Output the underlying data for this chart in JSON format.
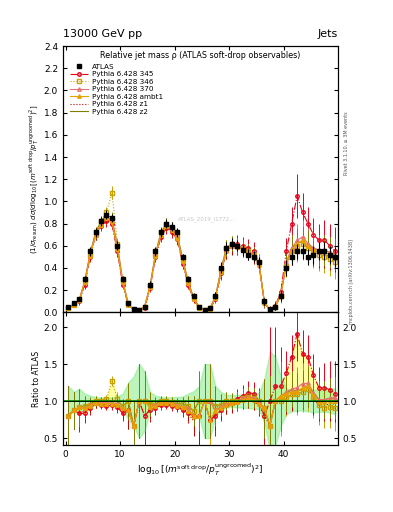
{
  "title_top": "13000 GeV pp",
  "title_right": "Jets",
  "plot_title": "Relative jet mass ρ (ATLAS soft-drop observables)",
  "ylabel_main": "(1/σ_{resum}) dσ/d log_{10}[(m^{soft drop}/p_T^{ungroomed})^2]",
  "ylabel_ratio": "Ratio to ATLAS",
  "watermark": "ATLAS_2019_I1772...",
  "rivet_label": "Rivet 3.1.10, ≥ 3M events",
  "arxiv_label": "mcplots.cern.ch [arXiv:1306.3438]",
  "xlim": [
    -0.5,
    50
  ],
  "ylim_main": [
    0,
    2.4
  ],
  "ylim_ratio": [
    0.4,
    2.2
  ],
  "yticks_main": [
    0.0,
    0.2,
    0.4,
    0.6,
    0.8,
    1.0,
    1.2,
    1.4,
    1.6,
    1.8,
    2.0,
    2.2,
    2.4
  ],
  "yticks_ratio": [
    0.5,
    1.0,
    1.5,
    2.0
  ],
  "x_ticks": [
    0,
    10,
    20,
    30,
    40
  ],
  "x_data": [
    0.5,
    1.5,
    2.5,
    3.5,
    4.5,
    5.5,
    6.5,
    7.5,
    8.5,
    9.5,
    10.5,
    11.5,
    12.5,
    13.5,
    14.5,
    15.5,
    16.5,
    17.5,
    18.5,
    19.5,
    20.5,
    21.5,
    22.5,
    23.5,
    24.5,
    25.5,
    26.5,
    27.5,
    28.5,
    29.5,
    30.5,
    31.5,
    32.5,
    33.5,
    34.5,
    35.5,
    36.5,
    37.5,
    38.5,
    39.5,
    40.5,
    41.5,
    42.5,
    43.5,
    44.5,
    45.5,
    46.5,
    47.5,
    48.5,
    49.5
  ],
  "atlas_y": [
    0.05,
    0.08,
    0.12,
    0.3,
    0.55,
    0.72,
    0.82,
    0.88,
    0.85,
    0.6,
    0.3,
    0.08,
    0.03,
    0.02,
    0.05,
    0.25,
    0.55,
    0.72,
    0.8,
    0.77,
    0.72,
    0.5,
    0.3,
    0.15,
    0.05,
    0.02,
    0.04,
    0.15,
    0.4,
    0.58,
    0.62,
    0.6,
    0.56,
    0.52,
    0.5,
    0.45,
    0.1,
    0.03,
    0.05,
    0.15,
    0.4,
    0.5,
    0.55,
    0.55,
    0.5,
    0.52,
    0.55,
    0.55,
    0.52,
    0.5
  ],
  "atlas_yerr": [
    0.01,
    0.01,
    0.02,
    0.03,
    0.04,
    0.04,
    0.04,
    0.04,
    0.04,
    0.04,
    0.03,
    0.02,
    0.01,
    0.01,
    0.02,
    0.03,
    0.04,
    0.04,
    0.04,
    0.04,
    0.04,
    0.03,
    0.03,
    0.02,
    0.01,
    0.01,
    0.02,
    0.03,
    0.05,
    0.05,
    0.05,
    0.05,
    0.05,
    0.05,
    0.05,
    0.05,
    0.03,
    0.02,
    0.03,
    0.05,
    0.07,
    0.07,
    0.07,
    0.07,
    0.07,
    0.08,
    0.08,
    0.08,
    0.08,
    0.09
  ],
  "series": [
    {
      "label": "Pythia 6.428 345",
      "color": "#e8001a",
      "linestyle": "-.",
      "marker": "o",
      "markerfacecolor": "none",
      "y": [
        0.04,
        0.07,
        0.1,
        0.25,
        0.5,
        0.7,
        0.78,
        0.82,
        0.8,
        0.55,
        0.25,
        0.07,
        0.02,
        0.02,
        0.04,
        0.22,
        0.5,
        0.68,
        0.76,
        0.72,
        0.66,
        0.44,
        0.25,
        0.12,
        0.04,
        0.02,
        0.03,
        0.12,
        0.35,
        0.55,
        0.6,
        0.62,
        0.6,
        0.58,
        0.55,
        0.45,
        0.08,
        0.03,
        0.06,
        0.18,
        0.55,
        0.8,
        1.05,
        0.9,
        0.8,
        0.7,
        0.65,
        0.65,
        0.6,
        0.55
      ],
      "yerr": [
        0.02,
        0.02,
        0.03,
        0.04,
        0.05,
        0.05,
        0.05,
        0.05,
        0.05,
        0.05,
        0.03,
        0.02,
        0.01,
        0.01,
        0.02,
        0.04,
        0.05,
        0.05,
        0.05,
        0.05,
        0.05,
        0.05,
        0.04,
        0.03,
        0.02,
        0.01,
        0.02,
        0.04,
        0.06,
        0.07,
        0.07,
        0.08,
        0.08,
        0.08,
        0.08,
        0.08,
        0.04,
        0.03,
        0.04,
        0.08,
        0.12,
        0.15,
        0.2,
        0.18,
        0.15,
        0.15,
        0.15,
        0.18,
        0.2,
        0.22
      ]
    },
    {
      "label": "Pythia 6.428 346",
      "color": "#c8a000",
      "linestyle": ":",
      "marker": "s",
      "markerfacecolor": "none",
      "y": [
        0.04,
        0.07,
        0.11,
        0.28,
        0.52,
        0.72,
        0.82,
        0.9,
        1.08,
        0.62,
        0.28,
        0.08,
        0.02,
        0.02,
        0.05,
        0.24,
        0.52,
        0.72,
        0.8,
        0.76,
        0.7,
        0.48,
        0.28,
        0.13,
        0.05,
        0.02,
        0.04,
        0.14,
        0.38,
        0.58,
        0.62,
        0.6,
        0.58,
        0.55,
        0.52,
        0.45,
        0.09,
        0.02,
        0.05,
        0.15,
        0.42,
        0.55,
        0.6,
        0.62,
        0.58,
        0.55,
        0.52,
        0.5,
        0.48,
        0.45
      ],
      "yerr": [
        0.02,
        0.02,
        0.03,
        0.04,
        0.05,
        0.05,
        0.05,
        0.05,
        0.06,
        0.05,
        0.03,
        0.02,
        0.01,
        0.01,
        0.02,
        0.04,
        0.05,
        0.05,
        0.05,
        0.05,
        0.05,
        0.05,
        0.04,
        0.03,
        0.02,
        0.01,
        0.02,
        0.04,
        0.06,
        0.07,
        0.07,
        0.07,
        0.07,
        0.07,
        0.07,
        0.07,
        0.04,
        0.02,
        0.03,
        0.07,
        0.1,
        0.12,
        0.15,
        0.15,
        0.15,
        0.15,
        0.15,
        0.15,
        0.15,
        0.15
      ]
    },
    {
      "label": "Pythia 6.428 370",
      "color": "#e87070",
      "linestyle": "-",
      "marker": "^",
      "markerfacecolor": "none",
      "y": [
        0.04,
        0.07,
        0.11,
        0.27,
        0.52,
        0.7,
        0.8,
        0.86,
        0.83,
        0.58,
        0.27,
        0.07,
        0.02,
        0.02,
        0.05,
        0.23,
        0.52,
        0.7,
        0.78,
        0.75,
        0.68,
        0.46,
        0.27,
        0.12,
        0.04,
        0.02,
        0.04,
        0.13,
        0.37,
        0.56,
        0.6,
        0.6,
        0.58,
        0.55,
        0.52,
        0.44,
        0.09,
        0.02,
        0.05,
        0.16,
        0.45,
        0.58,
        0.65,
        0.68,
        0.62,
        0.58,
        0.56,
        0.56,
        0.54,
        0.52
      ],
      "yerr": [
        0.02,
        0.02,
        0.03,
        0.04,
        0.05,
        0.05,
        0.05,
        0.05,
        0.05,
        0.05,
        0.03,
        0.02,
        0.01,
        0.01,
        0.02,
        0.04,
        0.05,
        0.05,
        0.05,
        0.05,
        0.05,
        0.05,
        0.04,
        0.03,
        0.02,
        0.01,
        0.02,
        0.04,
        0.06,
        0.07,
        0.07,
        0.07,
        0.07,
        0.07,
        0.07,
        0.07,
        0.04,
        0.02,
        0.03,
        0.07,
        0.1,
        0.12,
        0.15,
        0.15,
        0.14,
        0.14,
        0.14,
        0.14,
        0.14,
        0.14
      ]
    },
    {
      "label": "Pythia 6.428 ambt1",
      "color": "#e8a000",
      "linestyle": "-",
      "marker": "^",
      "markerfacecolor": "#e8a000",
      "y": [
        0.04,
        0.07,
        0.11,
        0.27,
        0.51,
        0.7,
        0.79,
        0.85,
        0.82,
        0.57,
        0.27,
        0.07,
        0.02,
        0.02,
        0.05,
        0.23,
        0.51,
        0.7,
        0.78,
        0.74,
        0.67,
        0.46,
        0.26,
        0.12,
        0.04,
        0.02,
        0.03,
        0.13,
        0.36,
        0.55,
        0.6,
        0.59,
        0.57,
        0.54,
        0.51,
        0.43,
        0.09,
        0.02,
        0.05,
        0.16,
        0.44,
        0.56,
        0.62,
        0.65,
        0.6,
        0.56,
        0.54,
        0.54,
        0.52,
        0.5
      ],
      "yerr": [
        0.02,
        0.02,
        0.03,
        0.04,
        0.05,
        0.05,
        0.05,
        0.05,
        0.05,
        0.05,
        0.03,
        0.02,
        0.01,
        0.01,
        0.02,
        0.04,
        0.05,
        0.05,
        0.05,
        0.05,
        0.05,
        0.05,
        0.04,
        0.03,
        0.02,
        0.01,
        0.02,
        0.04,
        0.06,
        0.07,
        0.07,
        0.07,
        0.07,
        0.07,
        0.07,
        0.07,
        0.04,
        0.02,
        0.03,
        0.07,
        0.1,
        0.12,
        0.14,
        0.14,
        0.14,
        0.14,
        0.14,
        0.14,
        0.14,
        0.14
      ]
    },
    {
      "label": "Pythia 6.428 z1",
      "color": "#c80000",
      "linestyle": ":",
      "marker": null,
      "markerfacecolor": "none",
      "y": [
        0.04,
        0.07,
        0.1,
        0.26,
        0.5,
        0.69,
        0.78,
        0.84,
        0.81,
        0.56,
        0.26,
        0.07,
        0.02,
        0.02,
        0.04,
        0.22,
        0.5,
        0.69,
        0.77,
        0.73,
        0.66,
        0.45,
        0.25,
        0.11,
        0.04,
        0.02,
        0.03,
        0.12,
        0.35,
        0.54,
        0.58,
        0.58,
        0.56,
        0.53,
        0.5,
        0.42,
        0.08,
        0.02,
        0.05,
        0.15,
        0.42,
        0.54,
        0.6,
        0.62,
        0.58,
        0.54,
        0.52,
        0.52,
        0.5,
        0.48
      ],
      "yerr": [
        0.02,
        0.02,
        0.02,
        0.03,
        0.04,
        0.04,
        0.04,
        0.04,
        0.04,
        0.04,
        0.03,
        0.02,
        0.01,
        0.01,
        0.01,
        0.03,
        0.04,
        0.04,
        0.04,
        0.04,
        0.04,
        0.04,
        0.03,
        0.03,
        0.02,
        0.01,
        0.01,
        0.03,
        0.05,
        0.06,
        0.06,
        0.06,
        0.06,
        0.06,
        0.06,
        0.06,
        0.03,
        0.02,
        0.03,
        0.06,
        0.09,
        0.11,
        0.13,
        0.13,
        0.12,
        0.12,
        0.12,
        0.12,
        0.12,
        0.12
      ]
    },
    {
      "label": "Pythia 6.428 z2",
      "color": "#808000",
      "linestyle": "-",
      "marker": null,
      "markerfacecolor": "none",
      "y": [
        0.04,
        0.07,
        0.11,
        0.28,
        0.53,
        0.72,
        0.82,
        0.88,
        0.85,
        0.6,
        0.28,
        0.08,
        0.02,
        0.02,
        0.05,
        0.24,
        0.53,
        0.72,
        0.8,
        0.76,
        0.7,
        0.48,
        0.28,
        0.13,
        0.05,
        0.02,
        0.04,
        0.14,
        0.38,
        0.58,
        0.62,
        0.6,
        0.58,
        0.55,
        0.52,
        0.44,
        0.09,
        0.02,
        0.05,
        0.16,
        0.44,
        0.58,
        0.62,
        0.64,
        0.6,
        0.58,
        0.56,
        0.56,
        0.54,
        0.52
      ],
      "yerr": [
        0.02,
        0.02,
        0.03,
        0.04,
        0.05,
        0.05,
        0.05,
        0.05,
        0.05,
        0.05,
        0.03,
        0.02,
        0.01,
        0.01,
        0.02,
        0.04,
        0.05,
        0.05,
        0.05,
        0.05,
        0.05,
        0.05,
        0.04,
        0.03,
        0.02,
        0.01,
        0.02,
        0.04,
        0.06,
        0.07,
        0.07,
        0.07,
        0.07,
        0.07,
        0.07,
        0.07,
        0.04,
        0.02,
        0.03,
        0.07,
        0.1,
        0.12,
        0.14,
        0.14,
        0.14,
        0.14,
        0.14,
        0.14,
        0.14,
        0.14
      ]
    }
  ],
  "ratio_band_color": "#90ee90",
  "ratio_band_alpha": 0.6,
  "atlas_color": "#000000",
  "background_color": "#ffffff"
}
